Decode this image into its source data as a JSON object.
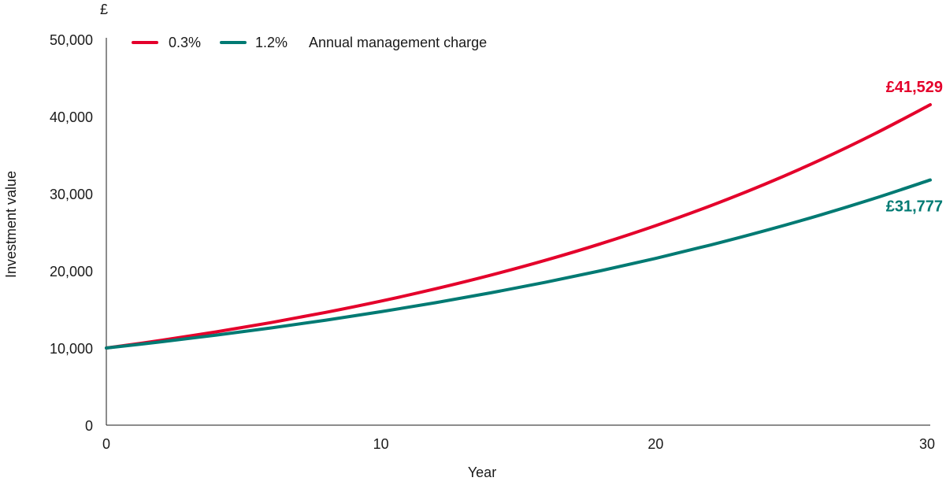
{
  "chart_data": {
    "type": "line",
    "unit_label": "£",
    "xlabel": "Year",
    "ylabel": "Investment value",
    "xlim": [
      0,
      30
    ],
    "ylim": [
      0,
      50000
    ],
    "x_ticks": [
      0,
      10,
      20,
      30
    ],
    "y_ticks": [
      0,
      10000,
      20000,
      30000,
      40000,
      50000
    ],
    "y_tick_labels": [
      "0",
      "10,000",
      "20,000",
      "30,000",
      "40,000",
      "50,000"
    ],
    "x_tick_labels": [
      "0",
      "10",
      "20",
      "30"
    ],
    "legend_title": "Annual management charge",
    "legend_position": "top-left",
    "grid": false,
    "x": [
      0,
      2,
      4,
      6,
      8,
      10,
      12,
      14,
      16,
      18,
      20,
      22,
      24,
      26,
      28,
      30
    ],
    "series": [
      {
        "name": "0.3%",
        "color": "#e4002b",
        "values": [
          10000,
          10996,
          12092,
          13297,
          14622,
          16079,
          17681,
          19443,
          21381,
          23511,
          25854,
          28431,
          31264,
          34380,
          37806,
          41529
        ],
        "end_label": "£41,529"
      },
      {
        "name": "1.2%",
        "color": "#007a73",
        "values": [
          10000,
          10801,
          11667,
          12602,
          13612,
          14703,
          15881,
          17154,
          18528,
          20013,
          21617,
          23350,
          25221,
          27242,
          29425,
          31777
        ],
        "end_label": "£31,777"
      }
    ]
  }
}
